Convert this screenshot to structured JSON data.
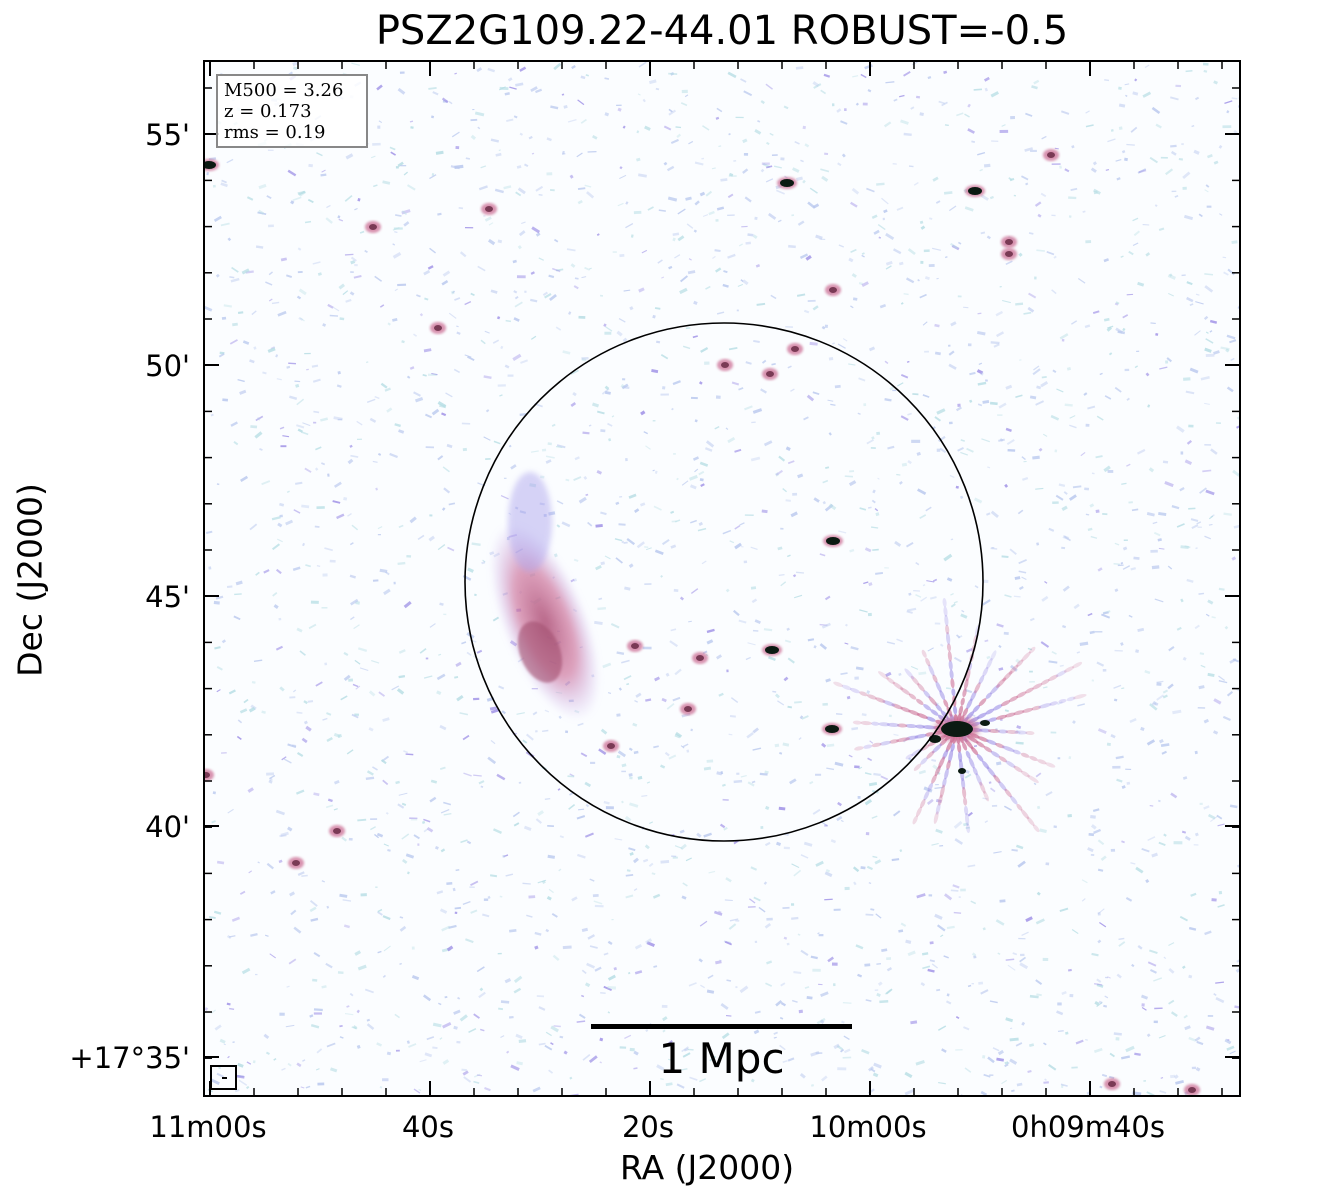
{
  "title": "PSZ2G109.22-44.01 ROBUST=-0.5",
  "info": {
    "m500": "M500 = 3.26",
    "z": "z = 0.173",
    "rms": "rms = 0.19"
  },
  "axes": {
    "xlabel": "RA (J2000)",
    "ylabel": "Dec (J2000)",
    "xticks": [
      "11m00s",
      "40s",
      "20s",
      "10m00s",
      "0h09m40s"
    ],
    "yticks": [
      "55'",
      "50'",
      "45'",
      "40'",
      "+17°35'"
    ]
  },
  "scalebar": {
    "label": "1 Mpc"
  },
  "colors": {
    "noise_light": "#b9c8ee",
    "noise_cyan": "#b6dde4",
    "emission_pink": "#cc6f95",
    "emission_purple": "#9d8fe6",
    "core_dark": "#0b1a12"
  }
}
